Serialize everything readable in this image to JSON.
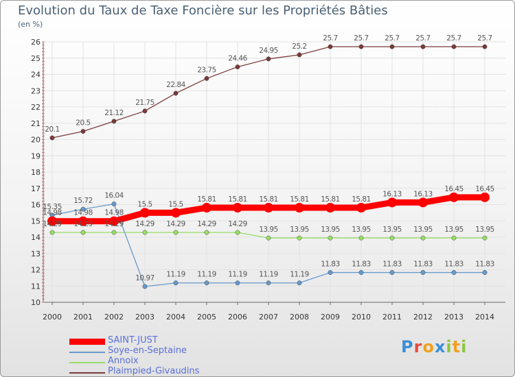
{
  "chart_data": {
    "type": "line",
    "title": "Evolution du Taux de Taxe Foncière sur les Propriétés Bâties",
    "unit_label": "(en %)",
    "x": [
      "2000",
      "2001",
      "2002",
      "2003",
      "2004",
      "2005",
      "2006",
      "2007",
      "2008",
      "2009",
      "2010",
      "2011",
      "2012",
      "2013",
      "2014"
    ],
    "ylim": [
      10,
      26
    ],
    "yticks": [
      10,
      11,
      12,
      13,
      14,
      15,
      16,
      17,
      18,
      19,
      20,
      21,
      22,
      23,
      24,
      25,
      26
    ],
    "series": [
      {
        "name": "SAINT-JUST",
        "color": "#ff0000",
        "values": [
          14.98,
          14.98,
          14.98,
          15.5,
          15.5,
          15.81,
          15.81,
          15.81,
          15.81,
          15.81,
          15.81,
          16.13,
          16.13,
          16.45,
          16.45
        ],
        "labels": [
          "14.98",
          "14.98",
          "14.98",
          "15.5",
          "15.5",
          "15.81",
          "15.81",
          "15.81",
          "15.81",
          "15.81",
          "15.81",
          "16.13",
          "16.13",
          "16.45",
          "16.45"
        ]
      },
      {
        "name": "Soye-en-Septaine",
        "color": "#6699cc",
        "values": [
          15.35,
          15.72,
          16.04,
          10.97,
          11.19,
          11.19,
          11.19,
          11.19,
          11.19,
          11.83,
          11.83,
          11.83,
          11.83,
          11.83,
          11.83
        ],
        "labels": [
          "15.35",
          "15.72",
          "16.04",
          "10.97",
          "11.19",
          "11.19",
          "11.19",
          "11.19",
          "11.19",
          "11.83",
          "11.83",
          "11.83",
          "11.83",
          "11.83",
          "11.83"
        ]
      },
      {
        "name": "Annoix",
        "color": "#99dd66",
        "values": [
          14.29,
          14.29,
          14.29,
          14.29,
          14.29,
          14.29,
          14.29,
          13.95,
          13.95,
          13.95,
          13.95,
          13.95,
          13.95,
          13.95,
          13.95
        ],
        "labels": [
          "14.29",
          "14.29",
          "14.29",
          "14.29",
          "14.29",
          "14.29",
          "14.29",
          "13.95",
          "13.95",
          "13.95",
          "13.95",
          "13.95",
          "13.95",
          "13.95",
          "13.95"
        ]
      },
      {
        "name": "Plaimpied-Givaudins",
        "color": "#7a3a3a",
        "values": [
          20.1,
          20.5,
          21.12,
          21.75,
          22.84,
          23.75,
          24.46,
          24.95,
          25.2,
          25.7,
          25.7,
          25.7,
          25.7,
          25.7,
          25.7
        ],
        "labels": [
          "20.1",
          "20.5",
          "21.12",
          "21.75",
          "22.84",
          "23.75",
          "24.46",
          "24.95",
          "25.2",
          "25.7",
          "25.7",
          "25.7",
          "25.7",
          "25.7",
          "25.7"
        ]
      }
    ]
  },
  "logo": {
    "text": "Proxiti"
  }
}
